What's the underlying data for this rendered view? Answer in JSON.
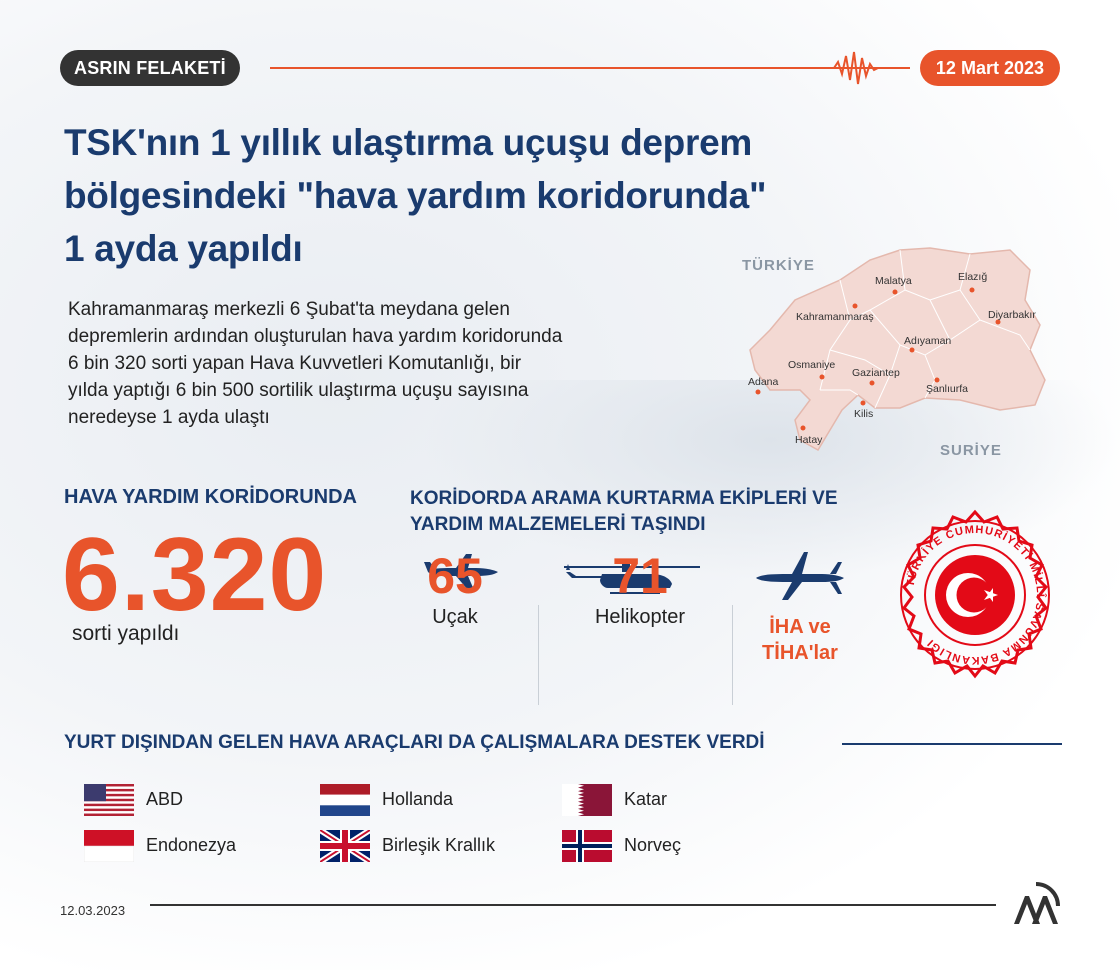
{
  "header": {
    "tag": "ASRIN FELAKETİ",
    "date": "12 Mart 2023"
  },
  "title": {
    "line1": "TSK'nın 1 yıllık ulaştırma uçuşu deprem",
    "line2": "bölgesindeki \"hava yardım koridorunda\"",
    "line3": "1 ayda yapıldı"
  },
  "intro": {
    "line1": "Kahramanmaraş merkezli 6 Şubat'ta meydana gelen",
    "line2": "depremlerin ardından oluşturulan hava yardım koridorunda",
    "line3": "6 bin 320 sorti yapan Hava Kuvvetleri Komutanlığı, bir",
    "line4": "yılda yaptığı 6 bin 500 sortilik ulaştırma uçuşu sayısına",
    "line5": "neredeyse 1 ayda ulaştı"
  },
  "map": {
    "country_north": "TÜRKİYE",
    "country_south": "SURİYE",
    "fill_color": "#f3d9d3",
    "dot_color": "#e8542b",
    "cities": [
      "Malatya",
      "Elazığ",
      "Kahramanmaraş",
      "Diyarbakır",
      "Adıyaman",
      "Osmaniye",
      "Adana",
      "Gaziantep",
      "Şanlıurfa",
      "Kilis",
      "Hatay"
    ]
  },
  "stats": {
    "left_heading": "HAVA YARDIM KORİDORUNDA",
    "sorties": "6.320",
    "sorties_label": "sorti yapıldı",
    "mid_heading_line1": "KORİDORDA ARAMA KURTARMA EKİPLERİ VE",
    "mid_heading_line2": "YARDIM MALZEMELERİ TAŞINDI",
    "items": [
      {
        "icon": "airplane-icon",
        "value": "65",
        "label": "Uçak"
      },
      {
        "icon": "helicopter-icon",
        "value": "71",
        "label": "Helikopter"
      },
      {
        "icon": "drone-icon",
        "label_line1": "İHA ve",
        "label_line2": "TİHA'lar"
      }
    ]
  },
  "seal": {
    "text": "TÜRKİYE CUMHURİYETİ MİLLÎ SAVUNMA BAKANLIĞI",
    "color": "#e30a17"
  },
  "foreign": {
    "heading": "YURT DIŞINDAN GELEN HAVA ARAÇLARI DA ÇALIŞMALARA DESTEK VERDİ",
    "countries": [
      {
        "name": "ABD",
        "flag": "usa-flag-icon"
      },
      {
        "name": "Hollanda",
        "flag": "netherlands-flag-icon"
      },
      {
        "name": "Katar",
        "flag": "qatar-flag-icon"
      },
      {
        "name": "Endonezya",
        "flag": "indonesia-flag-icon"
      },
      {
        "name": "Birleşik Krallık",
        "flag": "uk-flag-icon"
      },
      {
        "name": "Norveç",
        "flag": "norway-flag-icon"
      }
    ]
  },
  "footer": {
    "date": "12.03.2023",
    "logo": "aa-logo-icon"
  },
  "colors": {
    "navy": "#1a3b6e",
    "accent": "#e8542b",
    "dark": "#333333"
  }
}
